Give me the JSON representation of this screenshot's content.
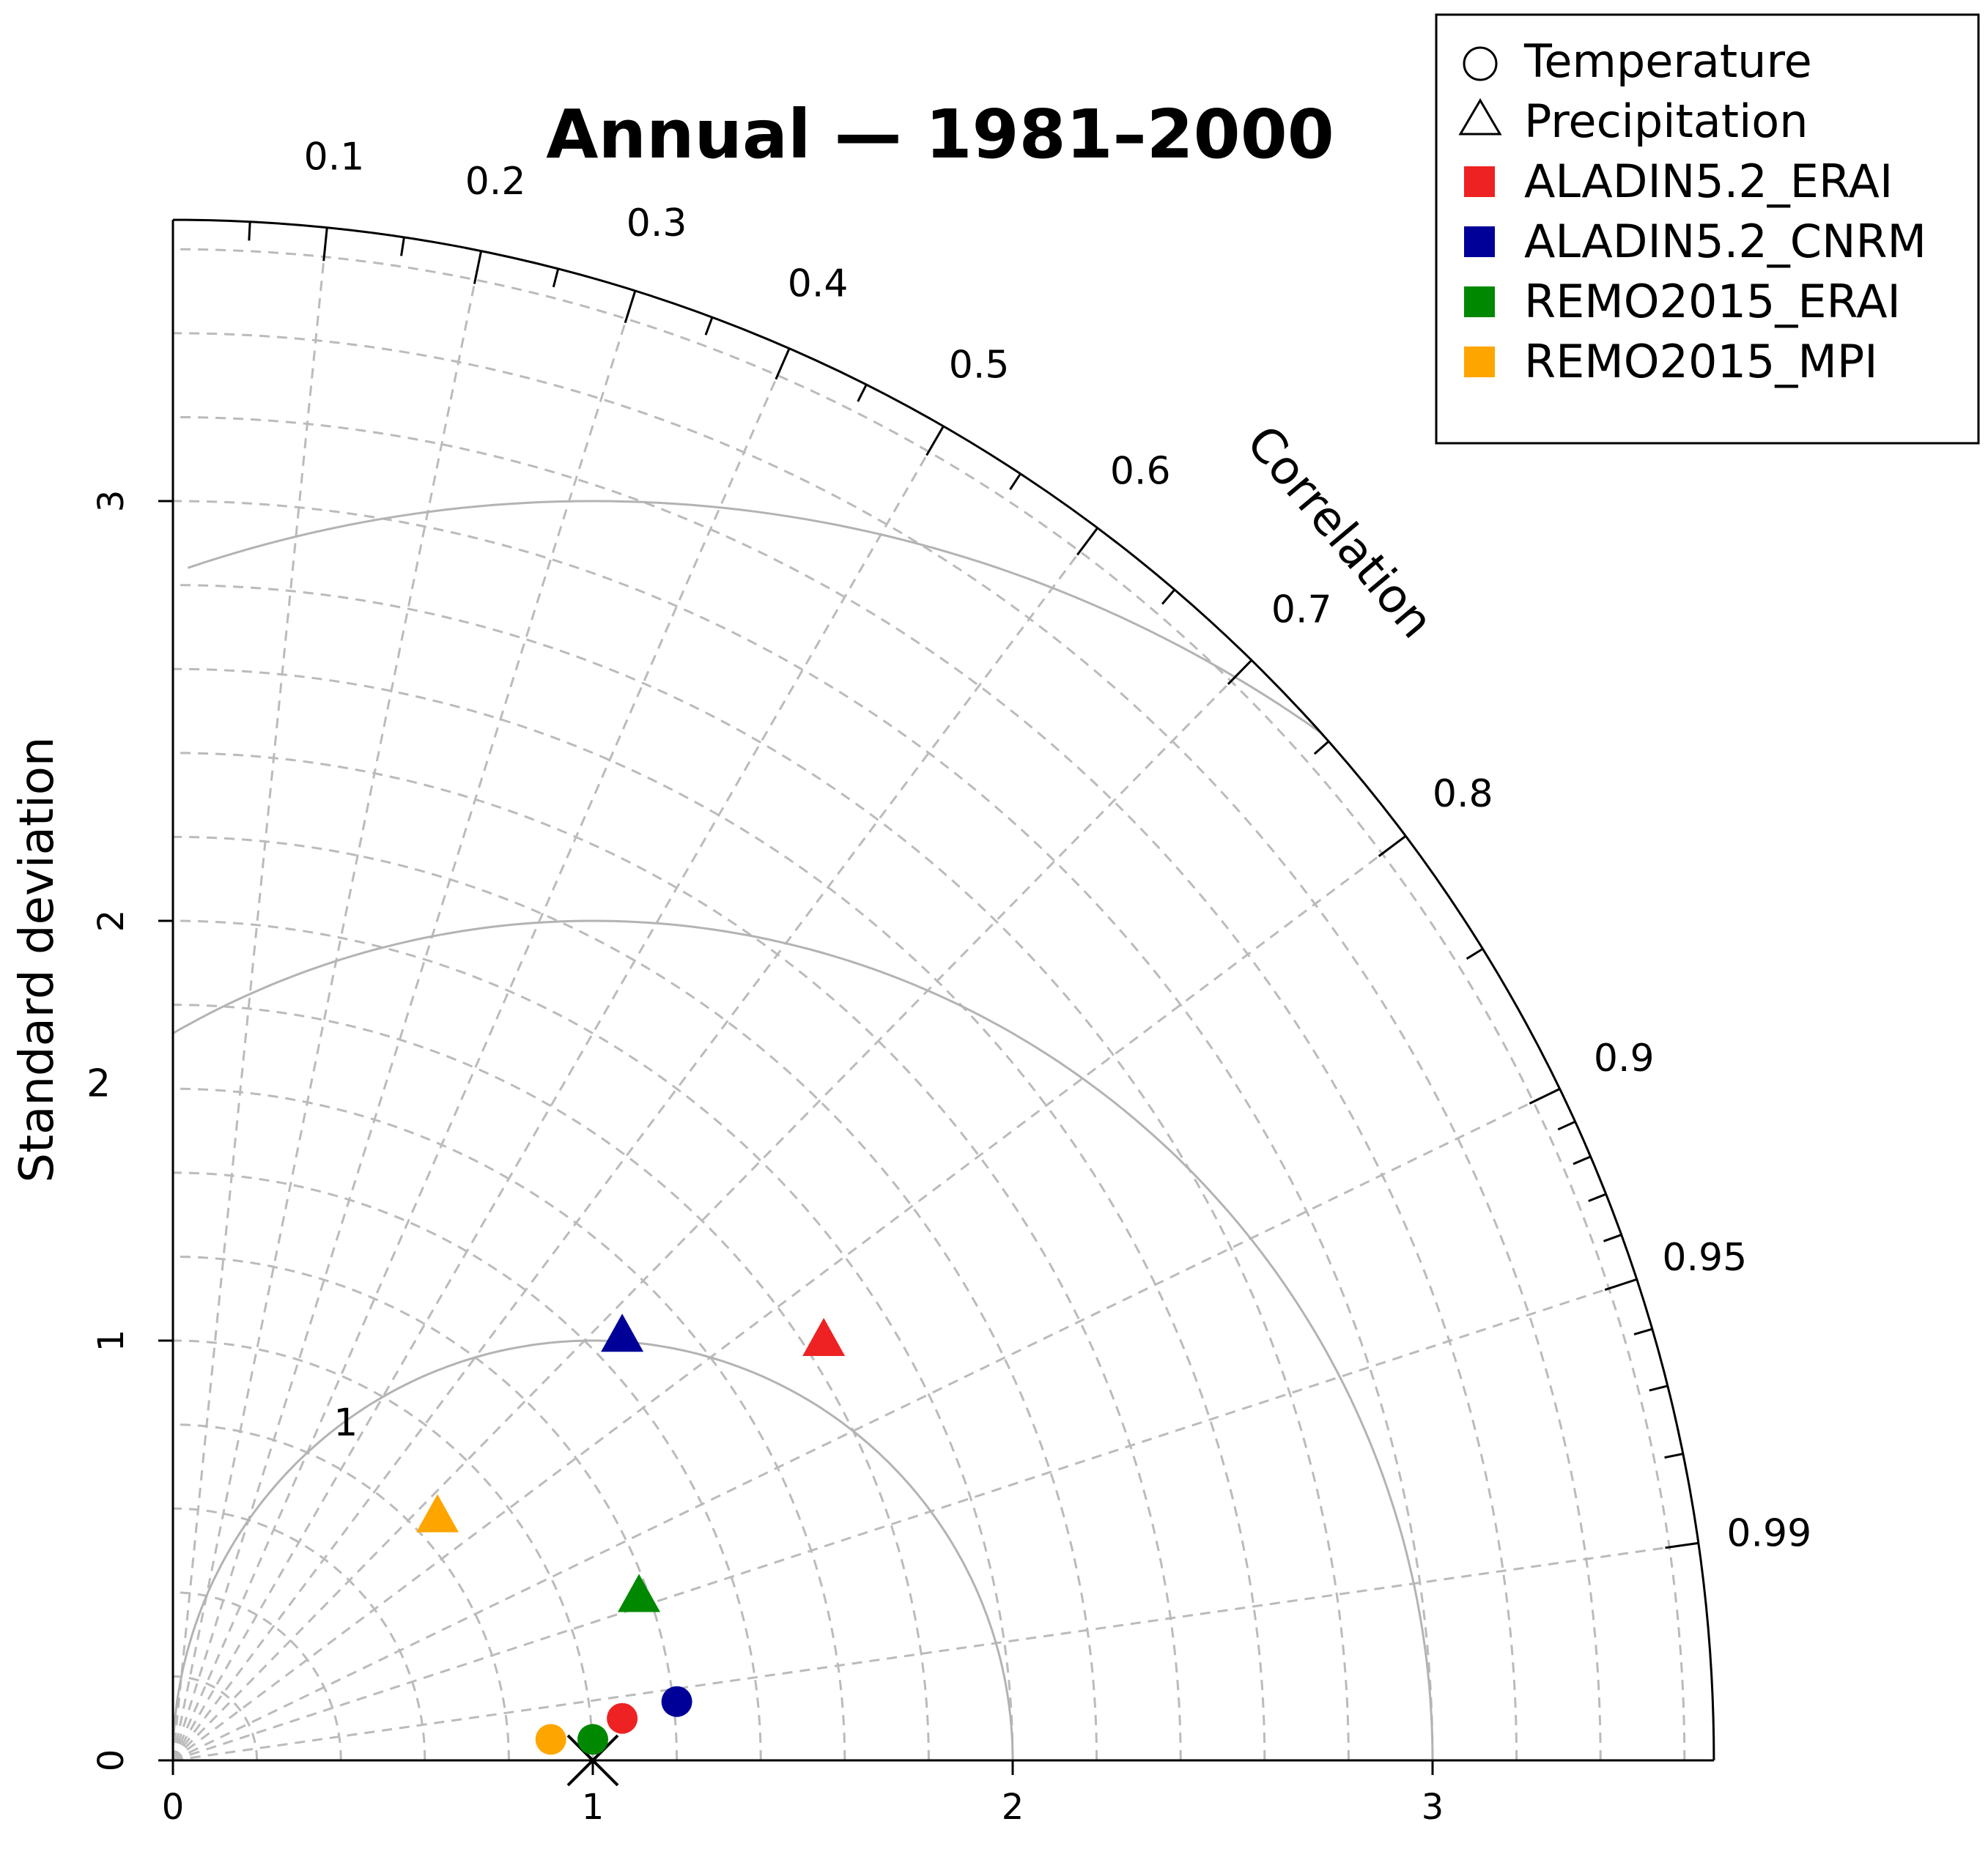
{
  "chart_data": {
    "type": "taylor-diagram",
    "title": "Annual — 1981–2000",
    "ylabel": "Standard deviation",
    "arc_label": "Correlation",
    "sd_max": 3.67,
    "x_ticks": [
      "0",
      "1",
      "2",
      "3"
    ],
    "y_ticks": [
      "0",
      "1",
      "2",
      "3"
    ],
    "correlation_labels": [
      "0.1",
      "0.2",
      "0.3",
      "0.4",
      "0.5",
      "0.6",
      "0.7",
      "0.8",
      "0.9",
      "0.95",
      "0.99"
    ],
    "correlation_major_values": [
      0.1,
      0.2,
      0.3,
      0.4,
      0.5,
      0.6,
      0.7,
      0.8,
      0.9,
      0.95,
      0.99
    ],
    "correlation_minor_values": [
      0.05,
      0.15,
      0.25,
      0.35,
      0.45,
      0.55,
      0.65,
      0.75,
      0.85,
      0.91,
      0.92,
      0.93,
      0.94,
      0.96,
      0.97,
      0.98
    ],
    "sd_gridlines": [
      0.2,
      0.4,
      0.6,
      0.8,
      1.0,
      1.2,
      1.4,
      1.6,
      1.8,
      2.0,
      2.2,
      2.4,
      2.6,
      2.8,
      3.0,
      3.2,
      3.4,
      3.6
    ],
    "rmsd_contours": [
      {
        "value": 1,
        "label": "1"
      },
      {
        "value": 2,
        "label": "2"
      },
      {
        "value": 3,
        "label": ""
      }
    ],
    "reference": {
      "sd": 1.0,
      "correlation": 1.0
    },
    "legend": {
      "placement": "top-right",
      "shapes": [
        {
          "shape": "circle",
          "label": "Temperature"
        },
        {
          "shape": "triangle",
          "label": "Precipitation"
        }
      ],
      "models": [
        {
          "label": "ALADIN5.2_ERAI",
          "color": "#ee2222"
        },
        {
          "label": "ALADIN5.2_CNRM",
          "color": "#000099"
        },
        {
          "label": "REMO2015_ERAI",
          "color": "#008800"
        },
        {
          "label": "REMO2015_MPI",
          "color": "#ffa500"
        }
      ]
    },
    "series": [
      {
        "name": "ALADIN5.2_ERAI Temperature",
        "shape": "circle",
        "color": "#ee2222",
        "x": 1.07,
        "y": 0.1
      },
      {
        "name": "ALADIN5.2_CNRM Temperature",
        "shape": "circle",
        "color": "#000099",
        "x": 1.2,
        "y": 0.14
      },
      {
        "name": "REMO2015_ERAI Temperature",
        "shape": "circle",
        "color": "#008800",
        "x": 1.0,
        "y": 0.05
      },
      {
        "name": "REMO2015_MPI Temperature",
        "shape": "circle",
        "color": "#ffa500",
        "x": 0.9,
        "y": 0.05
      },
      {
        "name": "ALADIN5.2_ERAI Precipitation",
        "shape": "triangle",
        "color": "#ee2222",
        "x": 1.55,
        "y": 1.0
      },
      {
        "name": "ALADIN5.2_CNRM Precipitation",
        "shape": "triangle",
        "color": "#000099",
        "x": 1.07,
        "y": 1.01
      },
      {
        "name": "REMO2015_ERAI Precipitation",
        "shape": "triangle",
        "color": "#008800",
        "x": 1.11,
        "y": 0.39
      },
      {
        "name": "REMO2015_MPI Precipitation",
        "shape": "triangle",
        "color": "#ffa500",
        "x": 0.63,
        "y": 0.58
      }
    ]
  }
}
